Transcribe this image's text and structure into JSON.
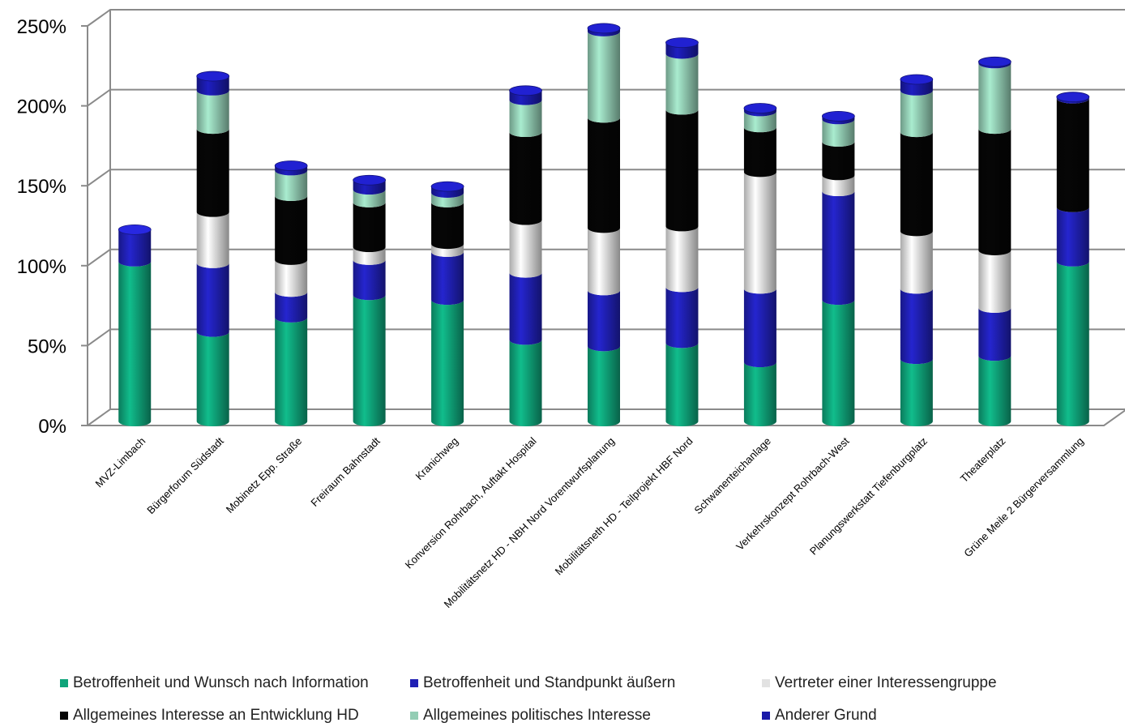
{
  "chart_data": {
    "type": "bar",
    "stacked": true,
    "style": "3d-cylinder",
    "y_ticks": [
      "0%",
      "50%",
      "100%",
      "150%",
      "200%",
      "250%"
    ],
    "ylim": [
      0,
      250
    ],
    "grid": true,
    "legend_position": "bottom",
    "categories": [
      "MVZ-Limbach",
      "Bürgerforum Südstadt",
      "Mobinetz Epp. Straße",
      "Freiraum Bahnstadt",
      "Kranichweg",
      "Konversion Rohrbach, Auftakt Hospital",
      "Mobilitätsnetz HD - NBH Nord Vorentwurfsplanung",
      "Mobilitätsneth HD - Teilprojekt HBF Nord",
      "Schwanenteichanlage",
      "Verkehrskonzept Rohrbach-West",
      "Planungswerkstatt Tiefenburgplatz",
      "Theaterplatz",
      "Grüne Meile 2 Bürgerversammlung"
    ],
    "series": [
      {
        "name": "Betroffenheit und Wunsch nach Information",
        "color": "#0fa47a",
        "values": [
          100,
          56,
          65,
          79,
          76,
          51,
          47,
          49,
          37,
          76,
          39,
          41,
          100
        ]
      },
      {
        "name": "Betroffenheit und Standpunkt äußern",
        "color": "#2020b4",
        "values": [
          20,
          43,
          16,
          22,
          30,
          42,
          35,
          35,
          46,
          68,
          44,
          30,
          34
        ]
      },
      {
        "name": "Vertreter einer Interessengruppe",
        "color": "#e2e2e2",
        "values": [
          0,
          32,
          20,
          8,
          5,
          33,
          39,
          38,
          73,
          10,
          36,
          36,
          0
        ]
      },
      {
        "name": "Allgemeines Interesse an Entwicklung HD",
        "color": "#050505",
        "values": [
          0,
          52,
          40,
          28,
          26,
          55,
          69,
          73,
          28,
          21,
          62,
          76,
          68
        ]
      },
      {
        "name": "Allgemeines politisches Interesse",
        "color": "#93cdb4",
        "values": [
          0,
          24,
          16,
          8,
          6,
          20,
          54,
          35,
          10,
          14,
          26,
          41,
          0
        ]
      },
      {
        "name": "Anderer Grund",
        "color": "#1a1aa8",
        "values": [
          0,
          9,
          3,
          6,
          4,
          6,
          2,
          7,
          2,
          2,
          7,
          1,
          1
        ]
      }
    ]
  }
}
